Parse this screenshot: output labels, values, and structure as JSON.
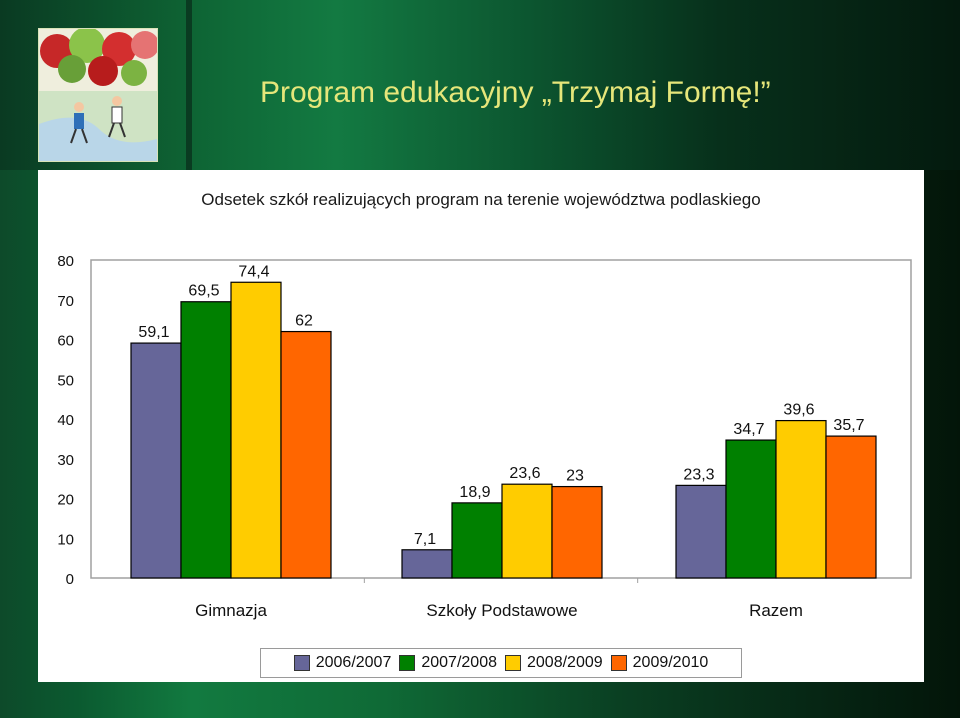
{
  "header": {
    "title": "Program edukacyjny „Trzymaj Formę!”"
  },
  "chart_data": {
    "type": "bar",
    "title": "Odsetek szkół realizujących program na terenie województwa podlaskiego",
    "categories": [
      "Gimnazja",
      "Szkoły Podstawowe",
      "Razem"
    ],
    "series": [
      {
        "name": "2006/2007",
        "values": [
          59.1,
          7.1,
          23.3
        ],
        "labels": [
          "59,1",
          "7,1",
          "23,3"
        ],
        "color": "#666699"
      },
      {
        "name": "2007/2008",
        "values": [
          69.5,
          18.9,
          34.7
        ],
        "labels": [
          "69,5",
          "18,9",
          "34,7"
        ],
        "color": "#008000"
      },
      {
        "name": "2008/2009",
        "values": [
          74.4,
          23.6,
          39.6
        ],
        "labels": [
          "74,4",
          "23,6",
          "39,6"
        ],
        "color": "#ffcc00"
      },
      {
        "name": "2009/2010",
        "values": [
          62,
          23,
          35.7
        ],
        "labels": [
          "62",
          "23",
          "35,7"
        ],
        "color": "#ff6600"
      }
    ],
    "ylim": [
      0,
      80
    ],
    "yticks": [
      "0",
      "10",
      "20",
      "30",
      "40",
      "50",
      "60",
      "70",
      "80"
    ],
    "grid": false,
    "legend_position": "bottom"
  }
}
